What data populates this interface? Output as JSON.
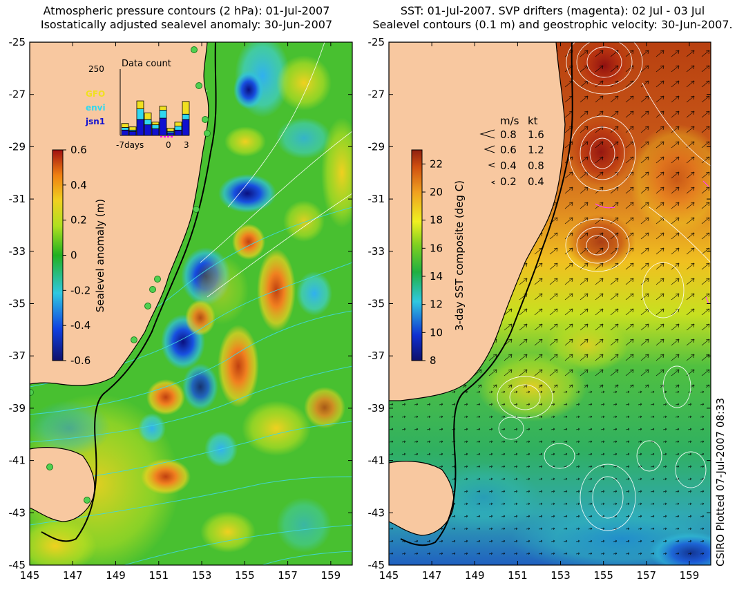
{
  "titles": {
    "left": [
      "Atmospheric pressure contours (2 hPa): 01-Jul-2007",
      "Isostatically adjusted sealevel anomaly: 30-Jun-2007"
    ],
    "right": [
      "SST: 01-Jul-2007. SVP drifters (magenta): 02 Jul - 03 Jul",
      "Sealevel contours (0.1 m) and geostrophic velocity: 30-Jun-2007."
    ]
  },
  "axes": {
    "y_ticks": [
      "-25",
      "-27",
      "-29",
      "-31",
      "-33",
      "-35",
      "-37",
      "-39",
      "-41",
      "-43",
      "-45"
    ],
    "x_ticks": [
      "145",
      "147",
      "149",
      "151",
      "153",
      "155",
      "157",
      "159"
    ]
  },
  "left_colorbar": {
    "label": "Sealevel anomaly (m)",
    "ticks": [
      "0.6",
      "0.4",
      "0.2",
      "0",
      "-0.2",
      "-0.4",
      "-0.6"
    ],
    "range": [
      -0.6,
      0.6
    ]
  },
  "right_colorbar": {
    "label": "3-day SST composite (deg C)",
    "ticks": [
      "22",
      "20",
      "18",
      "16",
      "14",
      "12",
      "10",
      "8"
    ],
    "range": [
      8,
      23
    ]
  },
  "data_count": {
    "title": "Data count",
    "ymax_label": "250",
    "legend": [
      {
        "name": "GFO",
        "color": "#f0e020"
      },
      {
        "name": "envi",
        "color": "#30d8f0"
      },
      {
        "name": "jsn1",
        "color": "#1010d0"
      }
    ],
    "x_ticks": [
      "-7days",
      "0",
      "3"
    ],
    "bars": [
      {
        "jsn1": 20,
        "envi": 10,
        "gfo": 15
      },
      {
        "jsn1": 15,
        "envi": 5,
        "gfo": 12
      },
      {
        "jsn1": 60,
        "envi": 40,
        "gfo": 30
      },
      {
        "jsn1": 40,
        "envi": 20,
        "gfo": 25
      },
      {
        "jsn1": 25,
        "envi": 15,
        "gfo": 10
      },
      {
        "jsn1": 65,
        "envi": 30,
        "gfo": 15
      },
      {
        "jsn1": 10,
        "envi": 5,
        "gfo": 12
      },
      {
        "jsn1": 20,
        "envi": 15,
        "gfo": 15
      },
      {
        "jsn1": 60,
        "envi": 20,
        "gfo": 48
      }
    ]
  },
  "velocity_legend": {
    "headers": [
      "m/s",
      "kt"
    ],
    "rows": [
      {
        "ms": "0.8",
        "kt": "1.6"
      },
      {
        "ms": "0.6",
        "kt": "1.2"
      },
      {
        "ms": "0.4",
        "kt": "0.8"
      },
      {
        "ms": "0.2",
        "kt": "0.4"
      }
    ]
  },
  "stamp": "CSIRO Plotted 07-Jul-2007 08:33",
  "colors": {
    "land": "#f8c8a0",
    "coastline": "#000000",
    "contour_white": "#ffffff",
    "contour_cyan": "#40d0e0",
    "station_marker": "#50d050"
  }
}
